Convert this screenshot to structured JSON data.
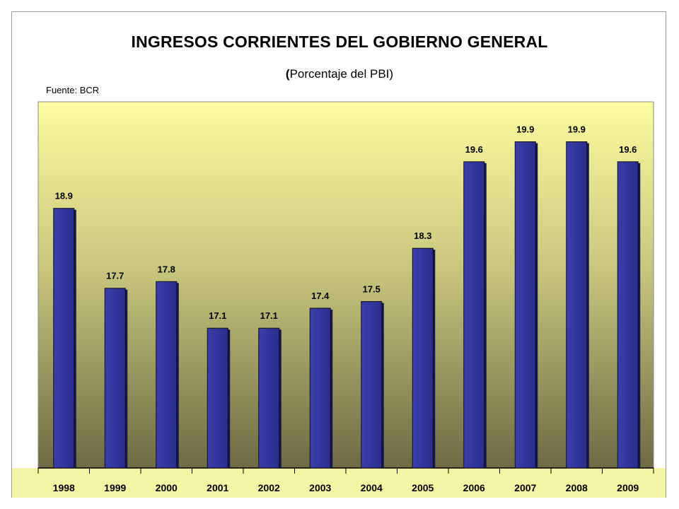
{
  "chart_data": {
    "type": "bar",
    "title": "INGRESOS CORRIENTES DEL GOBIERNO GENERAL",
    "subtitle": "Porcentaje del PBI",
    "source": "Fuente: BCR",
    "categories": [
      "1998",
      "1999",
      "2000",
      "2001",
      "2002",
      "2003",
      "2004",
      "2005",
      "2006",
      "2007",
      "2008",
      "2009"
    ],
    "values": [
      18.9,
      17.7,
      17.8,
      17.1,
      17.1,
      17.4,
      17.5,
      18.3,
      19.6,
      19.9,
      19.9,
      19.6
    ],
    "value_labels": [
      "18.9",
      "17.7",
      "17.8",
      "17.1",
      "17.1",
      "17.4",
      "17.5",
      "18.3",
      "19.6",
      "19.9",
      "19.9",
      "19.6"
    ],
    "ylim": [
      15,
      20.5
    ],
    "xlabel": "",
    "ylabel": "",
    "grid": false,
    "legend": "none",
    "colors": {
      "bar": "#2a2d8e",
      "bar_dark": "#14155a",
      "plot_top": "#fdfca0",
      "plot_bottom": "#6e6b45",
      "axis_band": "#f5f5a6"
    }
  }
}
